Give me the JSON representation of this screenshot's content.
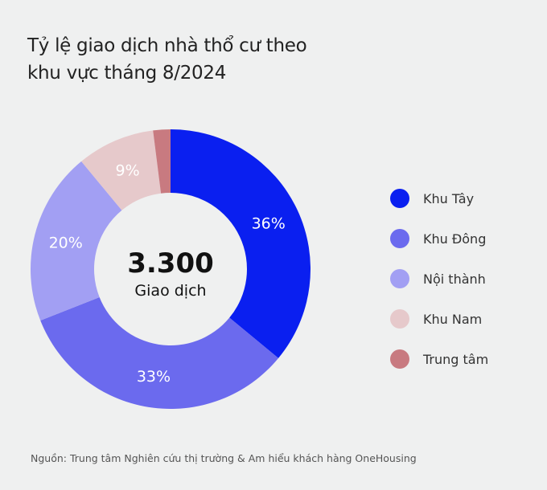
{
  "chart_data": {
    "type": "pie",
    "title": "Tỷ lệ giao dịch nhà thổ cư theo khu vực tháng 8/2024",
    "center_value": "3.300",
    "center_label": "Giao dịch",
    "slices": [
      {
        "label": "Khu Tây",
        "value": 36,
        "text": "36%",
        "color": "#0a1ff0"
      },
      {
        "label": "Khu Đông",
        "value": 33,
        "text": "33%",
        "color": "#6b6aee"
      },
      {
        "label": "Nội thành",
        "value": 20,
        "text": "20%",
        "color": "#a29ff3"
      },
      {
        "label": "Khu Nam",
        "value": 9,
        "text": "9%",
        "color": "#e6c9cb"
      },
      {
        "label": "Trung tâm",
        "value": 2,
        "text": "",
        "color": "#c87a80"
      }
    ],
    "legend_position": "right"
  },
  "title_line1": "Tỷ lệ giao dịch nhà thổ cư theo",
  "title_line2": "khu vực tháng 8/2024",
  "source": "Nguồn: Trung tâm Nghiên cứu thị trường & Am hiểu khách hàng OneHousing"
}
